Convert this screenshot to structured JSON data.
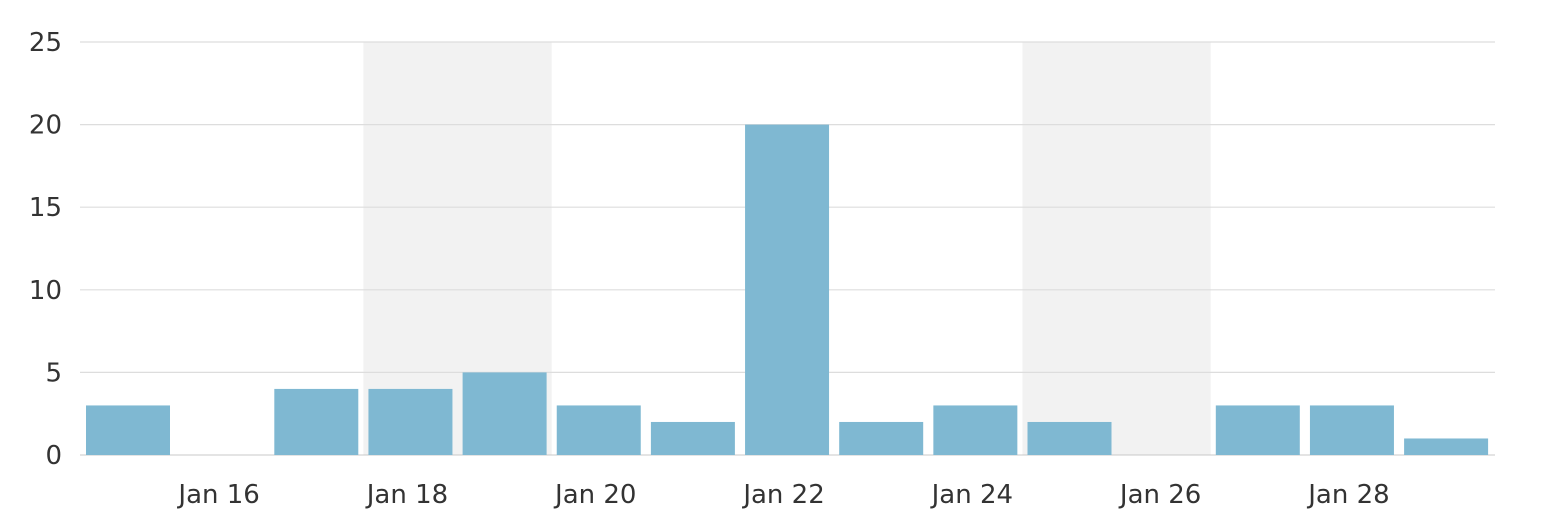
{
  "chart_data": {
    "type": "bar",
    "title": "",
    "xlabel": "",
    "ylabel": "",
    "categories": [
      "Jan 15",
      "Jan 16",
      "Jan 17",
      "Jan 18",
      "Jan 19",
      "Jan 20",
      "Jan 21",
      "Jan 22",
      "Jan 23",
      "Jan 24",
      "Jan 25",
      "Jan 26",
      "Jan 27",
      "Jan 28",
      "Jan 29"
    ],
    "values": [
      3,
      0,
      4,
      4,
      5,
      3,
      2,
      20,
      2,
      3,
      2,
      0,
      3,
      3,
      1
    ],
    "x_tick_labels": [
      {
        "at": "Jan 16",
        "label": "Jan 16"
      },
      {
        "at": "Jan 18",
        "label": "Jan 18"
      },
      {
        "at": "Jan 20",
        "label": "Jan 20"
      },
      {
        "at": "Jan 22",
        "label": "Jan 22"
      },
      {
        "at": "Jan 24",
        "label": "Jan 24"
      },
      {
        "at": "Jan 26",
        "label": "Jan 26"
      },
      {
        "at": "Jan 28",
        "label": "Jan 28"
      }
    ],
    "y_ticks": [
      0,
      5,
      10,
      15,
      20,
      25
    ],
    "ylim": [
      0,
      25
    ],
    "grid": true,
    "shaded_ranges": [
      [
        "Jan 18",
        "Jan 19"
      ],
      [
        "Jan 25",
        "Jan 26"
      ]
    ],
    "colors": {
      "bar": "#7fb8d2",
      "grid": "#dddddd",
      "shade": "#f2f2f2",
      "text": "#333333"
    }
  }
}
